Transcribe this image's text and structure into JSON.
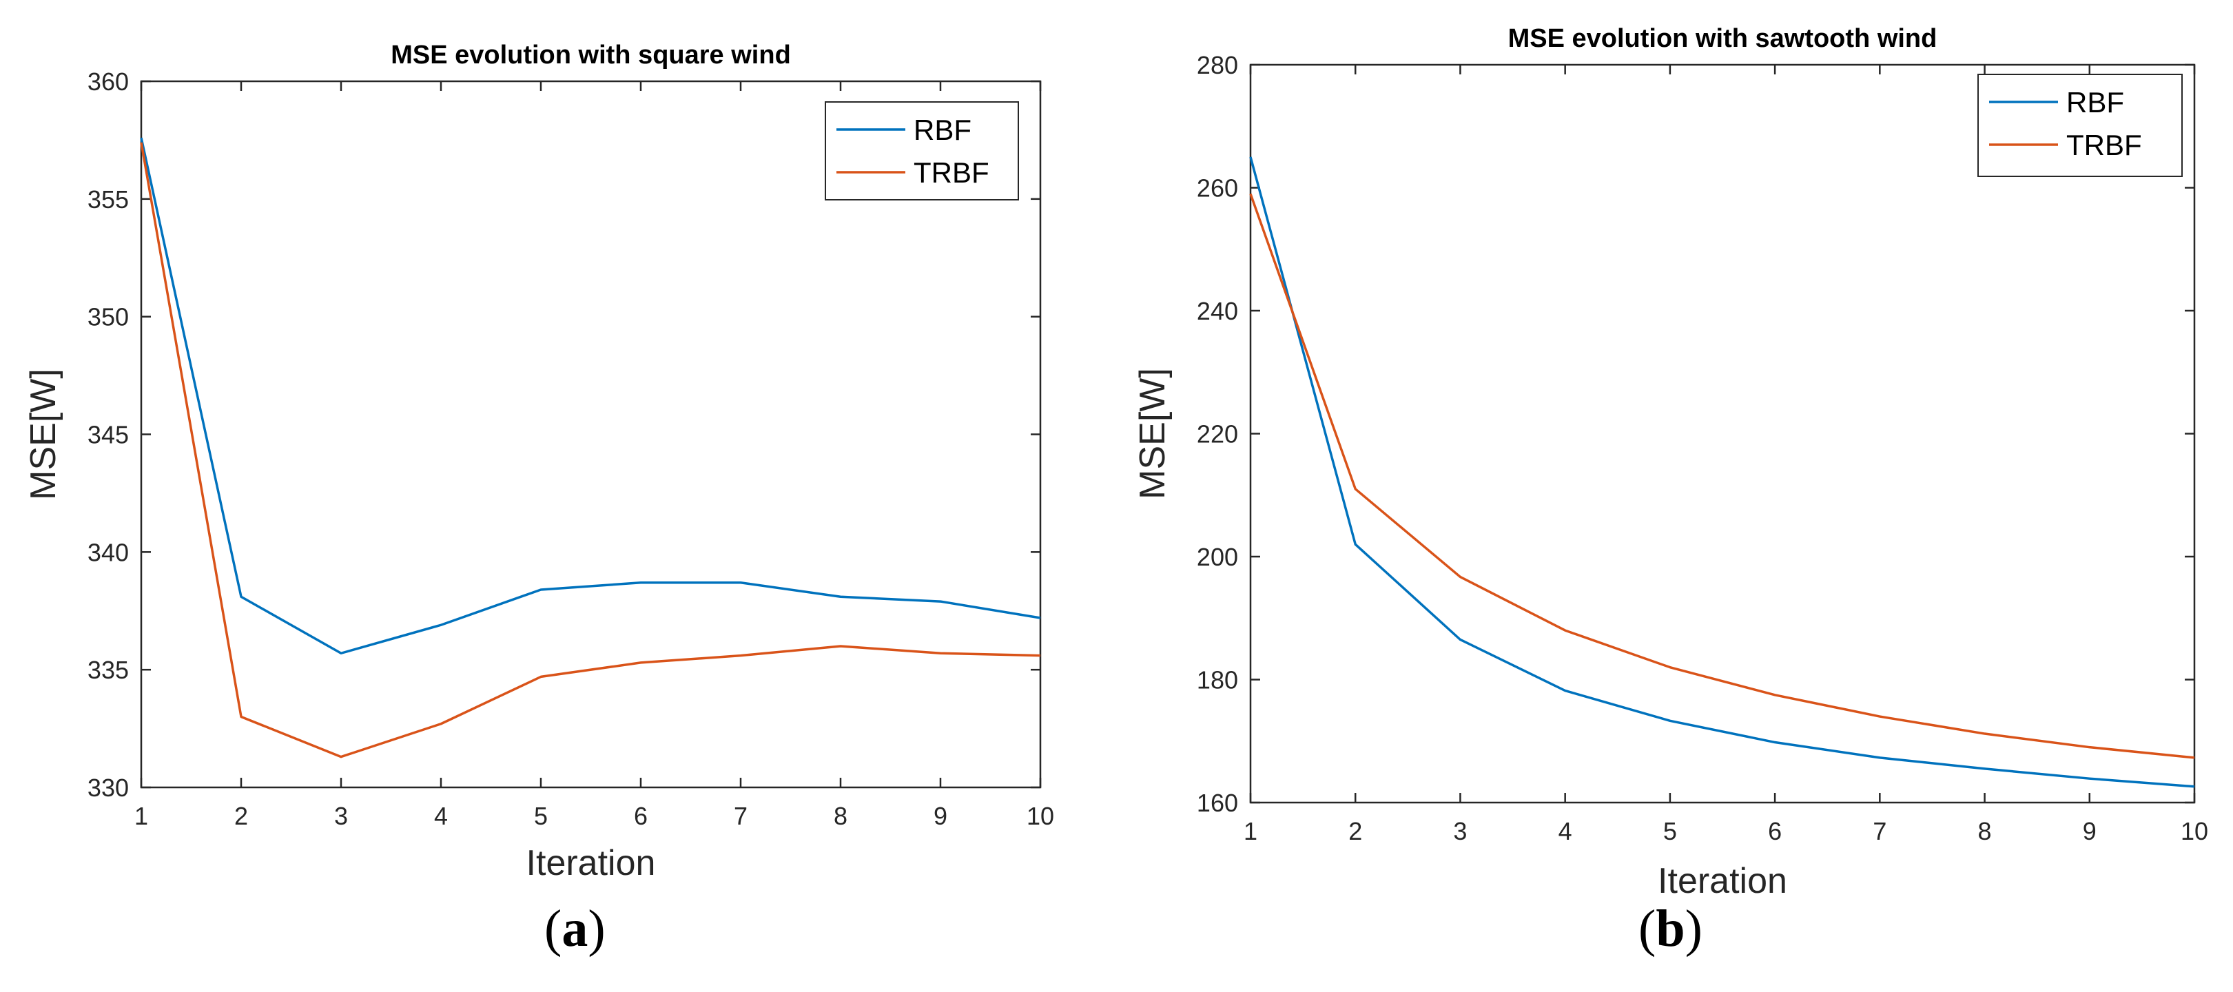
{
  "chart_data": [
    {
      "type": "line",
      "title": "MSE evolution with square wind",
      "xlabel": "Iteration",
      "ylabel": "MSE[W]",
      "xlim": [
        1,
        10
      ],
      "ylim": [
        330,
        360
      ],
      "xticks": [
        1,
        2,
        3,
        4,
        5,
        6,
        7,
        8,
        9,
        10
      ],
      "yticks": [
        330,
        335,
        340,
        345,
        350,
        355,
        360
      ],
      "legend_position": "top-right",
      "grid": false,
      "x": [
        1,
        2,
        3,
        4,
        5,
        6,
        7,
        8,
        9,
        10
      ],
      "series": [
        {
          "name": "RBF",
          "color": "#0072BD",
          "values": [
            357.6,
            338.1,
            335.7,
            336.9,
            338.4,
            338.7,
            338.7,
            338.1,
            337.9,
            337.2
          ]
        },
        {
          "name": "TRBF",
          "color": "#D95319",
          "values": [
            357.4,
            333.0,
            331.3,
            332.7,
            334.7,
            335.3,
            335.6,
            336.0,
            335.7,
            335.6
          ]
        }
      ]
    },
    {
      "type": "line",
      "title": "MSE evolution with sawtooth wind",
      "xlabel": "Iteration",
      "ylabel": "MSE[W]",
      "xlim": [
        1,
        10
      ],
      "ylim": [
        160,
        280
      ],
      "xticks": [
        1,
        2,
        3,
        4,
        5,
        6,
        7,
        8,
        9,
        10
      ],
      "yticks": [
        160,
        180,
        200,
        220,
        240,
        260,
        280
      ],
      "legend_position": "top-right",
      "grid": false,
      "x": [
        1,
        2,
        3,
        4,
        5,
        6,
        7,
        8,
        9,
        10
      ],
      "series": [
        {
          "name": "RBF",
          "color": "#0072BD",
          "values": [
            265.0,
            202.0,
            186.5,
            178.2,
            173.3,
            169.8,
            167.3,
            165.5,
            163.9,
            162.6
          ]
        },
        {
          "name": "TRBF",
          "color": "#D95319",
          "values": [
            259.0,
            211.0,
            196.7,
            188.0,
            182.0,
            177.5,
            174.0,
            171.2,
            169.0,
            167.3
          ]
        }
      ]
    }
  ],
  "panels": {
    "a": {
      "open": "(",
      "letter": "a",
      "close": ")"
    },
    "b": {
      "open": "(",
      "letter": "b",
      "close": ")"
    }
  }
}
